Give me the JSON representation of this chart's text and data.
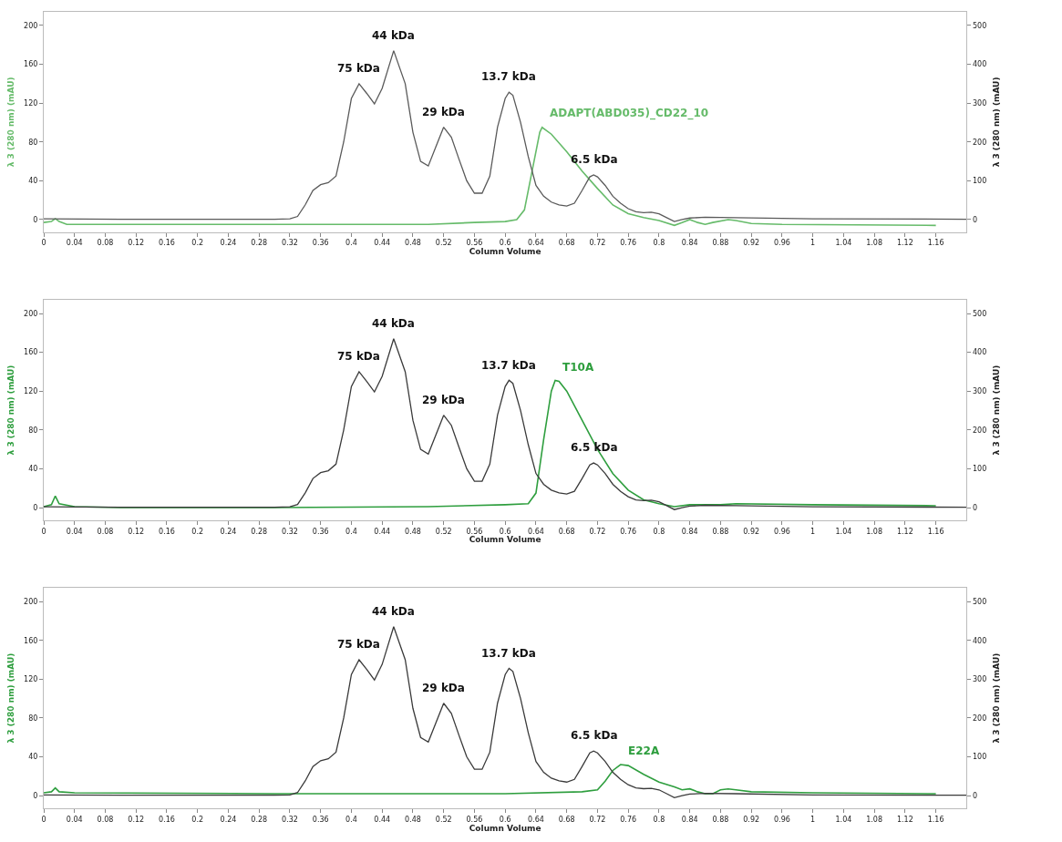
{
  "chart_data": [
    {
      "type": "line",
      "xlabel": "Column Volume",
      "ylabel": "λ 3 (280 nm) (mAU)",
      "y2label": "λ 3 (280 nm) (mAU)",
      "xlim": [
        0,
        1.2
      ],
      "ylim": [
        -13,
        214
      ],
      "y2lim": [
        -32.5,
        535
      ],
      "xticks": [
        0,
        0.04,
        0.08,
        0.12,
        0.16,
        0.2,
        0.24,
        0.28,
        0.32,
        0.36,
        0.4,
        0.44,
        0.48,
        0.52,
        0.56,
        0.6,
        0.64,
        0.68,
        0.72,
        0.76,
        0.8,
        0.84,
        0.88,
        0.92,
        0.96,
        1,
        1.04,
        1.08,
        1.12,
        1.16
      ],
      "yticks": [
        0,
        40,
        80,
        120,
        160,
        200
      ],
      "y2ticks": [
        0,
        100,
        200,
        300,
        400,
        500
      ],
      "legend": false,
      "marker": "none",
      "line_style": "solid",
      "annotations": [
        {
          "text": "75 kDa",
          "x": 0.41,
          "y": 140
        },
        {
          "text": "44 kDa",
          "x": 0.455,
          "y": 174
        },
        {
          "text": "29 kDa",
          "x": 0.52,
          "y": 95
        },
        {
          "text": "13.7 kDa",
          "x": 0.605,
          "y": 131
        },
        {
          "text": "6.5 kDa",
          "x": 0.715,
          "y": 46
        }
      ],
      "series": [
        {
          "color": "#5a5a5a",
          "axis": "y2",
          "x": [
            0,
            0.1,
            0.3,
            0.32,
            0.33,
            0.34,
            0.35,
            0.36,
            0.37,
            0.38,
            0.39,
            0.4,
            0.41,
            0.42,
            0.43,
            0.44,
            0.455,
            0.47,
            0.48,
            0.49,
            0.5,
            0.51,
            0.52,
            0.53,
            0.54,
            0.55,
            0.56,
            0.57,
            0.58,
            0.59,
            0.6,
            0.605,
            0.61,
            0.62,
            0.63,
            0.64,
            0.65,
            0.66,
            0.67,
            0.68,
            0.69,
            0.7,
            0.71,
            0.715,
            0.72,
            0.73,
            0.74,
            0.75,
            0.76,
            0.77,
            0.78,
            0.79,
            0.8,
            0.81,
            0.82,
            0.83,
            0.84,
            0.86,
            0.9,
            1.0,
            1.2
          ],
          "values": [
            2,
            1,
            1,
            2,
            8,
            38,
            75,
            90,
            95,
            112,
            200,
            312,
            350,
            325,
            298,
            338,
            435,
            350,
            225,
            150,
            138,
            188,
            238,
            212,
            155,
            100,
            68,
            68,
            112,
            238,
            312,
            328,
            320,
            250,
            162,
            88,
            60,
            45,
            38,
            35,
            42,
            75,
            110,
            115,
            110,
            88,
            60,
            42,
            28,
            20,
            18,
            19,
            15,
            5,
            -5,
            0,
            4,
            6,
            5,
            2,
            1
          ]
        },
        {
          "name": "ADAPT(ABD035)_CD22_10",
          "color": "#66bb6a",
          "x": [
            0,
            0.01,
            0.015,
            0.02,
            0.03,
            0.1,
            0.5,
            0.56,
            0.6,
            0.615,
            0.625,
            0.635,
            0.645,
            0.648,
            0.66,
            0.68,
            0.7,
            0.72,
            0.74,
            0.76,
            0.78,
            0.8,
            0.82,
            0.83,
            0.84,
            0.85,
            0.86,
            0.87,
            0.89,
            0.9,
            0.92,
            0.96,
            1.16
          ],
          "values": [
            -3,
            -2,
            1,
            -2,
            -5,
            -5,
            -5,
            -3,
            -2,
            0,
            10,
            50,
            90,
            95,
            88,
            70,
            50,
            32,
            15,
            6,
            2,
            -1,
            -6,
            -3,
            0,
            -3,
            -5,
            -3,
            0,
            -1,
            -4,
            -5,
            -6
          ]
        }
      ]
    },
    {
      "type": "line",
      "xlabel": "Column Volume",
      "ylabel": "λ 3 (280 nm) (mAU)",
      "y2label": "λ 3 (280 nm) (mAU)",
      "xlim": [
        0,
        1.2
      ],
      "ylim": [
        -13,
        214
      ],
      "y2lim": [
        -32.5,
        535
      ],
      "xticks": [
        0,
        0.04,
        0.08,
        0.12,
        0.16,
        0.2,
        0.24,
        0.28,
        0.32,
        0.36,
        0.4,
        0.44,
        0.48,
        0.52,
        0.56,
        0.6,
        0.64,
        0.68,
        0.72,
        0.76,
        0.8,
        0.84,
        0.88,
        0.92,
        0.96,
        1,
        1.04,
        1.08,
        1.12,
        1.16
      ],
      "yticks": [
        0,
        40,
        80,
        120,
        160,
        200
      ],
      "y2ticks": [
        0,
        100,
        200,
        300,
        400,
        500
      ],
      "legend": false,
      "marker": "none",
      "line_style": "solid",
      "annotations": [
        {
          "text": "75 kDa",
          "x": 0.41,
          "y": 140
        },
        {
          "text": "44 kDa",
          "x": 0.455,
          "y": 174
        },
        {
          "text": "29 kDa",
          "x": 0.52,
          "y": 95
        },
        {
          "text": "13.7 kDa",
          "x": 0.605,
          "y": 131
        },
        {
          "text": "6.5 kDa",
          "x": 0.715,
          "y": 46
        }
      ],
      "series": [
        {
          "color": "#3a3a3a",
          "axis": "y2",
          "x": [
            0,
            0.1,
            0.3,
            0.32,
            0.33,
            0.34,
            0.35,
            0.36,
            0.37,
            0.38,
            0.39,
            0.4,
            0.41,
            0.42,
            0.43,
            0.44,
            0.455,
            0.47,
            0.48,
            0.49,
            0.5,
            0.51,
            0.52,
            0.53,
            0.54,
            0.55,
            0.56,
            0.57,
            0.58,
            0.59,
            0.6,
            0.605,
            0.61,
            0.62,
            0.63,
            0.64,
            0.65,
            0.66,
            0.67,
            0.68,
            0.69,
            0.7,
            0.71,
            0.715,
            0.72,
            0.73,
            0.74,
            0.75,
            0.76,
            0.77,
            0.78,
            0.79,
            0.8,
            0.81,
            0.82,
            0.83,
            0.84,
            0.86,
            0.9,
            1.0,
            1.2
          ],
          "values": [
            2,
            1,
            1,
            2,
            8,
            38,
            75,
            90,
            95,
            112,
            200,
            312,
            350,
            325,
            298,
            338,
            435,
            350,
            225,
            150,
            138,
            188,
            238,
            212,
            155,
            100,
            68,
            68,
            112,
            238,
            312,
            328,
            320,
            250,
            162,
            88,
            60,
            45,
            38,
            35,
            42,
            75,
            110,
            115,
            110,
            88,
            60,
            42,
            28,
            20,
            18,
            19,
            15,
            5,
            -5,
            0,
            4,
            6,
            5,
            2,
            1
          ]
        },
        {
          "name": "T10A",
          "color": "#2e9e3e",
          "x": [
            0,
            0.01,
            0.015,
            0.02,
            0.04,
            0.1,
            0.3,
            0.5,
            0.6,
            0.63,
            0.64,
            0.65,
            0.66,
            0.665,
            0.67,
            0.68,
            0.7,
            0.72,
            0.74,
            0.76,
            0.78,
            0.8,
            0.82,
            0.84,
            0.88,
            0.9,
            1.0,
            1.16
          ],
          "values": [
            1,
            3,
            12,
            4,
            1,
            0,
            0,
            1,
            3,
            4,
            15,
            70,
            120,
            131,
            130,
            120,
            90,
            60,
            35,
            18,
            8,
            4,
            1,
            3,
            3,
            4,
            3,
            2
          ]
        }
      ]
    },
    {
      "type": "line",
      "xlabel": "Column Volume",
      "ylabel": "λ 3 (280 nm) (mAU)",
      "y2label": "λ 3 (280 nm) (mAU)",
      "xlim": [
        0,
        1.2
      ],
      "ylim": [
        -13,
        214
      ],
      "y2lim": [
        -32.5,
        535
      ],
      "xticks": [
        0,
        0.04,
        0.08,
        0.12,
        0.16,
        0.2,
        0.24,
        0.28,
        0.32,
        0.36,
        0.4,
        0.44,
        0.48,
        0.52,
        0.56,
        0.6,
        0.64,
        0.68,
        0.72,
        0.76,
        0.8,
        0.84,
        0.88,
        0.92,
        0.96,
        1,
        1.04,
        1.08,
        1.12,
        1.16
      ],
      "yticks": [
        0,
        40,
        80,
        120,
        160,
        200
      ],
      "y2ticks": [
        0,
        100,
        200,
        300,
        400,
        500
      ],
      "legend": false,
      "marker": "none",
      "line_style": "solid",
      "annotations": [
        {
          "text": "75 kDa",
          "x": 0.41,
          "y": 140
        },
        {
          "text": "44 kDa",
          "x": 0.455,
          "y": 174
        },
        {
          "text": "29 kDa",
          "x": 0.52,
          "y": 95
        },
        {
          "text": "13.7 kDa",
          "x": 0.605,
          "y": 131
        },
        {
          "text": "6.5 kDa",
          "x": 0.715,
          "y": 46
        }
      ],
      "series": [
        {
          "color": "#3a3a3a",
          "axis": "y2",
          "x": [
            0,
            0.1,
            0.3,
            0.32,
            0.33,
            0.34,
            0.35,
            0.36,
            0.37,
            0.38,
            0.39,
            0.4,
            0.41,
            0.42,
            0.43,
            0.44,
            0.455,
            0.47,
            0.48,
            0.49,
            0.5,
            0.51,
            0.52,
            0.53,
            0.54,
            0.55,
            0.56,
            0.57,
            0.58,
            0.59,
            0.6,
            0.605,
            0.61,
            0.62,
            0.63,
            0.64,
            0.65,
            0.66,
            0.67,
            0.68,
            0.69,
            0.7,
            0.71,
            0.715,
            0.72,
            0.73,
            0.74,
            0.75,
            0.76,
            0.77,
            0.78,
            0.79,
            0.8,
            0.81,
            0.82,
            0.83,
            0.84,
            0.86,
            0.9,
            1.0,
            1.2
          ],
          "values": [
            2,
            1,
            1,
            2,
            8,
            38,
            75,
            90,
            95,
            112,
            200,
            312,
            350,
            325,
            298,
            338,
            435,
            350,
            225,
            150,
            138,
            188,
            238,
            212,
            155,
            100,
            68,
            68,
            112,
            238,
            312,
            328,
            320,
            250,
            162,
            88,
            60,
            45,
            38,
            35,
            42,
            75,
            110,
            115,
            110,
            88,
            60,
            42,
            28,
            20,
            18,
            19,
            15,
            5,
            -5,
            0,
            4,
            6,
            5,
            2,
            1
          ]
        },
        {
          "name": "E22A",
          "color": "#2e9e3e",
          "x": [
            0,
            0.01,
            0.015,
            0.02,
            0.04,
            0.3,
            0.6,
            0.7,
            0.72,
            0.73,
            0.74,
            0.75,
            0.76,
            0.78,
            0.8,
            0.82,
            0.83,
            0.84,
            0.85,
            0.86,
            0.87,
            0.88,
            0.89,
            0.9,
            0.92,
            1.0,
            1.16
          ],
          "values": [
            3,
            4,
            8,
            4,
            3,
            2,
            2,
            4,
            6,
            15,
            26,
            32,
            31,
            22,
            14,
            9,
            6,
            7,
            4,
            2,
            2,
            6,
            7,
            6,
            4,
            3,
            2
          ]
        }
      ]
    }
  ]
}
